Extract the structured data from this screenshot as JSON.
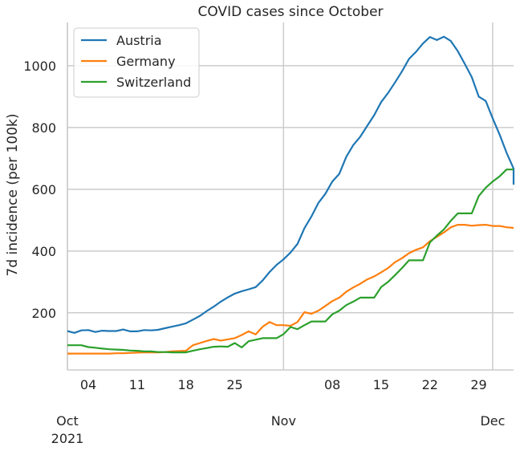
{
  "chart_data": {
    "type": "line",
    "title": "COVID cases since October",
    "xlabel": "",
    "ylabel": "7d incidence (per 100k)",
    "x_start": "2021-10-01",
    "xlim": [
      "2021-10-01",
      "2021-12-04"
    ],
    "ylim": [
      15,
      1140
    ],
    "yticks": [
      200,
      400,
      600,
      800,
      1000
    ],
    "grid": true,
    "legend_position": "top-left",
    "x_minor_ticks": [
      {
        "date": "2021-10-04",
        "label": "04"
      },
      {
        "date": "2021-10-11",
        "label": "11"
      },
      {
        "date": "2021-10-18",
        "label": "18"
      },
      {
        "date": "2021-10-25",
        "label": "25"
      },
      {
        "date": "2021-11-08",
        "label": "08"
      },
      {
        "date": "2021-11-15",
        "label": "15"
      },
      {
        "date": "2021-11-22",
        "label": "22"
      },
      {
        "date": "2021-11-29",
        "label": "29"
      }
    ],
    "x_major_ticks": [
      {
        "date": "2021-10-01",
        "label": "Oct",
        "year": "2021"
      },
      {
        "date": "2021-11-01",
        "label": "Nov",
        "year": ""
      },
      {
        "date": "2021-12-01",
        "label": "Dec",
        "year": ""
      }
    ],
    "series": [
      {
        "name": "Austria",
        "color": "#1f77b4",
        "values": [
          141,
          135,
          143,
          144,
          138,
          142,
          141,
          141,
          146,
          140,
          140,
          144,
          143,
          145,
          150,
          155,
          160,
          166,
          178,
          190,
          206,
          220,
          236,
          250,
          262,
          270,
          276,
          283,
          305,
          332,
          355,
          373,
          395,
          423,
          474,
          512,
          556,
          585,
          625,
          650,
          705,
          743,
          770,
          805,
          840,
          882,
          912,
          946,
          982,
          1022,
          1045,
          1072,
          1093,
          1083,
          1094,
          1080,
          1047,
          1006,
          963,
          900,
          886,
          830,
          777,
          718,
          667,
          615
        ]
      },
      {
        "name": "Germany",
        "color": "#ff7f0e",
        "values": [
          68,
          68,
          68,
          68,
          68,
          68,
          68,
          69,
          69,
          70,
          71,
          72,
          72,
          72,
          73,
          75,
          76,
          77,
          95,
          102,
          109,
          115,
          110,
          114,
          118,
          128,
          140,
          130,
          155,
          170,
          160,
          160,
          158,
          170,
          202,
          197,
          207,
          222,
          238,
          249,
          268,
          282,
          294,
          308,
          318,
          331,
          345,
          364,
          377,
          393,
          404,
          412,
          432,
          446,
          460,
          477,
          485,
          485,
          482,
          484,
          485,
          481,
          481,
          477,
          475,
          475
        ]
      },
      {
        "name": "Switzerland",
        "color": "#2ca02c",
        "values": [
          95,
          95,
          95,
          89,
          87,
          84,
          82,
          81,
          80,
          78,
          77,
          75,
          75,
          73,
          73,
          72,
          72,
          72,
          77,
          82,
          86,
          90,
          91,
          90,
          102,
          88,
          108,
          113,
          118,
          118,
          118,
          131,
          154,
          147,
          160,
          172,
          172,
          172,
          195,
          207,
          225,
          236,
          249,
          249,
          249,
          283,
          300,
          322,
          345,
          370,
          370,
          370,
          428,
          450,
          470,
          498,
          522,
          522,
          522,
          578,
          605,
          625,
          642,
          664,
          664,
          664
        ]
      }
    ]
  }
}
